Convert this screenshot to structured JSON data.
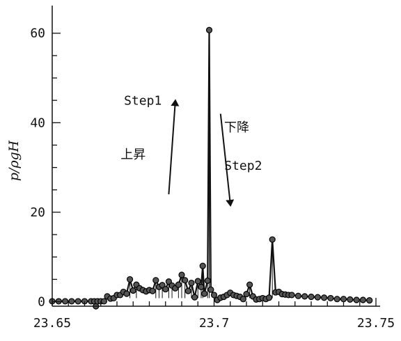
{
  "chart_data": {
    "type": "scatter",
    "title": "",
    "xlabel": "",
    "ylabel": "p/ρgH",
    "xlim": [
      23.65,
      23.75
    ],
    "ylim": [
      -1,
      64
    ],
    "x_ticks": [
      23.65,
      23.7,
      23.75
    ],
    "x_tick_labels": [
      "23.65",
      "23.7",
      "23.75"
    ],
    "y_ticks": [
      0,
      20,
      40,
      60
    ],
    "y_tick_labels": [
      "0",
      "20",
      "40",
      "60"
    ],
    "grid": false,
    "legend": "none",
    "colors": {
      "line": "#111111",
      "marker": "#555555",
      "marker_edge": "#000000"
    },
    "series": [
      {
        "x": [
          23.65,
          23.652,
          23.654,
          23.656,
          23.658,
          23.66,
          23.662,
          23.663,
          23.6635,
          23.664,
          23.665,
          23.666,
          23.667,
          23.668,
          23.669,
          23.67,
          23.671,
          23.672,
          23.673,
          23.674,
          23.675,
          23.676,
          23.677,
          23.678,
          23.679,
          23.68,
          23.681,
          23.682,
          23.683,
          23.684,
          23.685,
          23.686,
          23.687,
          23.688,
          23.689,
          23.69,
          23.691,
          23.692,
          23.693,
          23.694,
          23.695,
          23.696,
          23.6965,
          23.697,
          23.698,
          23.6985,
          23.699,
          23.7,
          23.701,
          23.702,
          23.703,
          23.704,
          23.705,
          23.706,
          23.707,
          23.708,
          23.709,
          23.71,
          23.711,
          23.712,
          23.713,
          23.714,
          23.715,
          23.716,
          23.717,
          23.718,
          23.719,
          23.72,
          23.721,
          23.722,
          23.723,
          23.724,
          23.726,
          23.728,
          23.73,
          23.732,
          23.734,
          23.736,
          23.738,
          23.74,
          23.742,
          23.744,
          23.746,
          23.748
        ],
        "y": [
          0.1,
          0.1,
          0.1,
          0.1,
          0.1,
          0.1,
          0.1,
          0.1,
          -1.0,
          0.1,
          0.1,
          0.1,
          1.2,
          0.7,
          0.8,
          1.5,
          1.5,
          2.2,
          1.8,
          5.0,
          2.5,
          3.8,
          3.0,
          2.6,
          2.3,
          2.6,
          2.4,
          4.8,
          3.3,
          3.7,
          2.8,
          4.5,
          3.6,
          3.0,
          3.8,
          6.0,
          4.8,
          2.4,
          4.2,
          1.0,
          4.6,
          3.3,
          8.0,
          1.8,
          4.7,
          60.7,
          2.7,
          1.5,
          0.4,
          0.9,
          1.1,
          1.5,
          2.0,
          1.5,
          1.3,
          1.1,
          0.6,
          1.7,
          3.8,
          1.2,
          0.5,
          0.6,
          0.8,
          0.6,
          0.9,
          13.9,
          2.1,
          2.2,
          1.7,
          1.6,
          1.5,
          1.5,
          1.3,
          1.2,
          1.1,
          1.0,
          0.9,
          0.8,
          0.6,
          0.6,
          0.5,
          0.4,
          0.4,
          0.3
        ]
      }
    ],
    "annotations": [
      {
        "text": "Step1",
        "at": [
          23.678,
          44.0
        ]
      },
      {
        "text": "上昇",
        "at": [
          23.675,
          32.0
        ]
      },
      {
        "text": "下降",
        "at": [
          23.707,
          38.0
        ]
      },
      {
        "text": "Step2",
        "at": [
          23.709,
          29.5
        ]
      }
    ],
    "arrows": [
      {
        "name": "up-arrow",
        "from": [
          23.686,
          24.0
        ],
        "to": [
          23.688,
          44.5
        ]
      },
      {
        "name": "down-arrow",
        "from": [
          23.702,
          42.0
        ],
        "to": [
          23.705,
          22.0
        ]
      }
    ]
  }
}
